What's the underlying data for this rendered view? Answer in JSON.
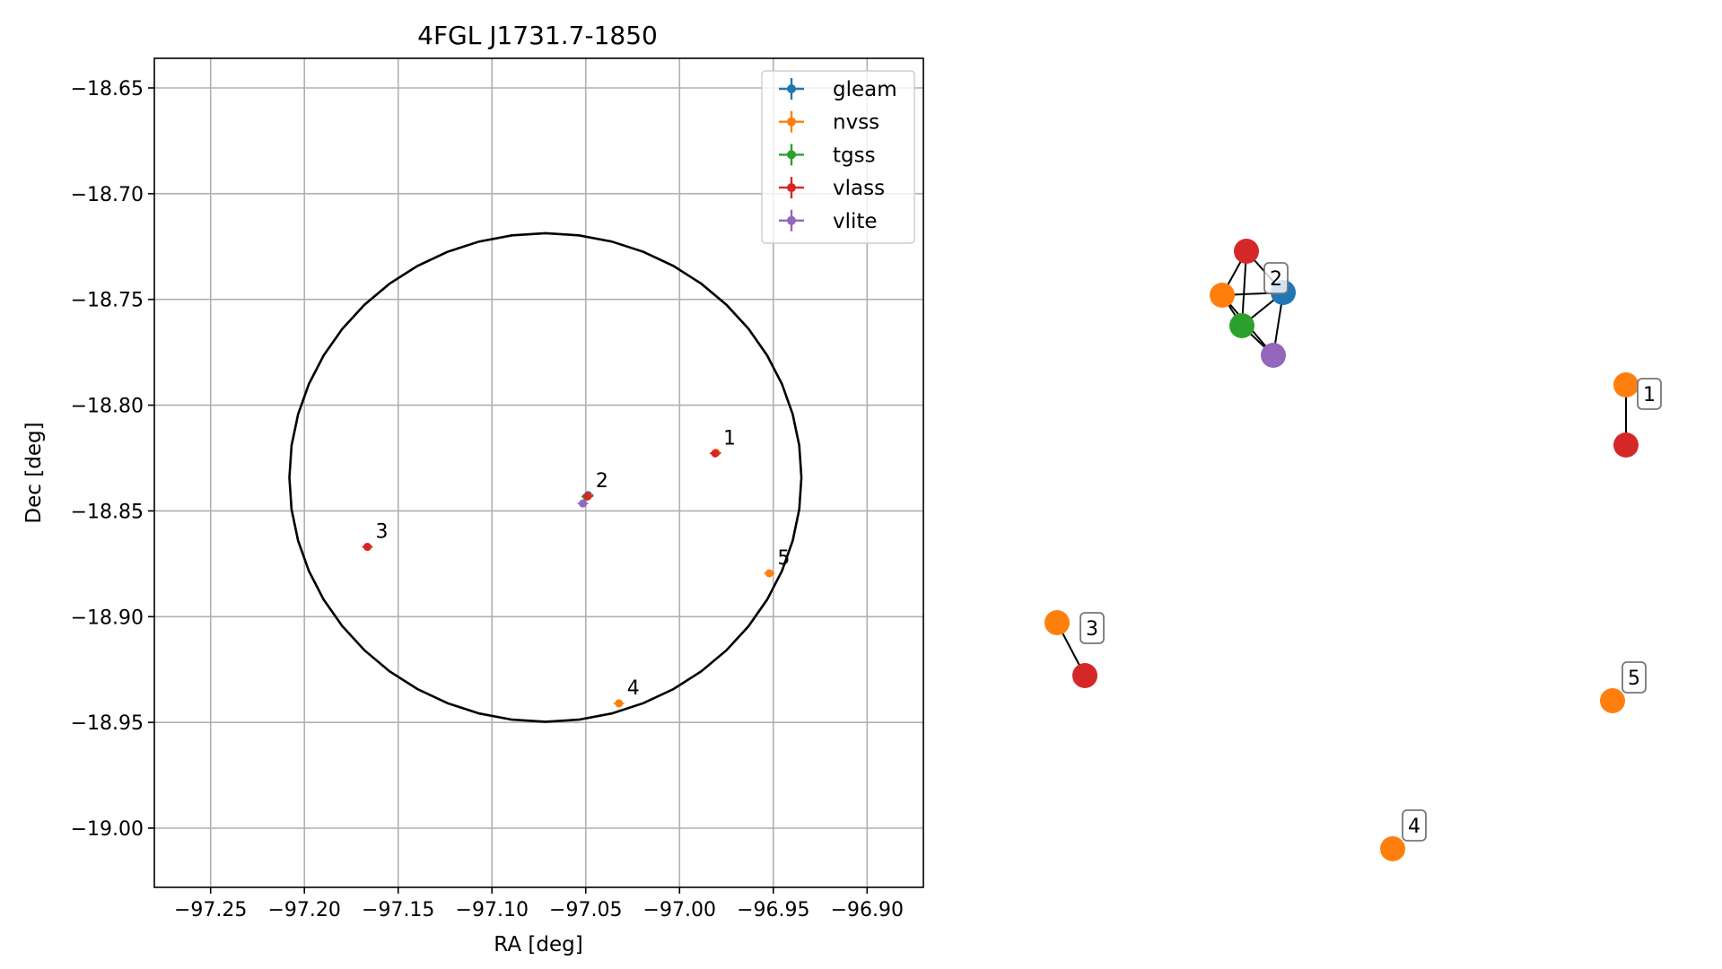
{
  "chart_data": [
    {
      "type": "scatter",
      "title": "4FGL J1731.7-1850",
      "xlabel": "RA [deg]",
      "ylabel": "Dec [deg]",
      "xlim": [
        -97.28,
        -96.87
      ],
      "ylim": [
        -19.028,
        -18.636
      ],
      "grid": true,
      "legend_position": "top-right",
      "xticks": [
        -97.25,
        -97.2,
        -97.15,
        -97.1,
        -97.05,
        -97.0,
        -96.95,
        -96.9
      ],
      "xtick_labels": [
        "−97.25",
        "−97.20",
        "−97.15",
        "−97.10",
        "−97.05",
        "−97.00",
        "−96.95",
        "−96.90"
      ],
      "yticks": [
        -18.65,
        -18.7,
        -18.75,
        -18.8,
        -18.85,
        -18.9,
        -18.95,
        -19.0
      ],
      "ytick_labels": [
        "−18.65",
        "−18.70",
        "−18.75",
        "−18.80",
        "−18.85",
        "−18.90",
        "−18.95",
        "−19.00"
      ],
      "ellipse": {
        "center_ra": -97.0715,
        "center_dec": -18.8342,
        "ra_semi_axis": 0.1365,
        "dec_semi_axis": 0.1155
      },
      "series": [
        {
          "name": "gleam",
          "color": "#1f77b4",
          "points": [
            {
              "ra": -97.0487,
              "dec": -18.8425,
              "label": ""
            }
          ]
        },
        {
          "name": "nvss",
          "color": "#ff7f0e",
          "points": [
            {
              "ra": -97.0487,
              "dec": -18.843,
              "label": ""
            },
            {
              "ra": -97.0323,
              "dec": -18.941,
              "label": "4"
            },
            {
              "ra": -96.9521,
              "dec": -18.8795,
              "label": "5"
            },
            {
              "ra": -96.9805,
              "dec": -18.8225,
              "label": ""
            },
            {
              "ra": -97.1664,
              "dec": -18.867,
              "label": ""
            }
          ]
        },
        {
          "name": "tgss",
          "color": "#2ca02c",
          "points": [
            {
              "ra": -97.0495,
              "dec": -18.8433,
              "label": ""
            }
          ]
        },
        {
          "name": "vlass",
          "color": "#d62728",
          "points": [
            {
              "ra": -96.981,
              "dec": -18.8228,
              "label": "1"
            },
            {
              "ra": -97.049,
              "dec": -18.843,
              "label": "2"
            },
            {
              "ra": -97.1664,
              "dec": -18.867,
              "label": "3"
            }
          ]
        },
        {
          "name": "vlite",
          "color": "#9467bd",
          "points": [
            {
              "ra": -97.0515,
              "dec": -18.8465,
              "label": ""
            }
          ]
        }
      ]
    },
    {
      "type": "network",
      "nodes": [
        {
          "id": "g2",
          "survey": "gleam",
          "color": "#1f77b4",
          "label": ""
        },
        {
          "id": "n2",
          "survey": "nvss",
          "color": "#ff7f0e",
          "label": ""
        },
        {
          "id": "t2",
          "survey": "tgss",
          "color": "#2ca02c",
          "label": ""
        },
        {
          "id": "v2",
          "survey": "vlass",
          "color": "#d62728",
          "label": ""
        },
        {
          "id": "l2",
          "survey": "vlite",
          "color": "#9467bd",
          "label": ""
        },
        {
          "id": "n1",
          "survey": "nvss",
          "color": "#ff7f0e",
          "label": ""
        },
        {
          "id": "v1",
          "survey": "vlass",
          "color": "#d62728",
          "label": ""
        },
        {
          "id": "n3",
          "survey": "nvss",
          "color": "#ff7f0e",
          "label": ""
        },
        {
          "id": "v3",
          "survey": "vlass",
          "color": "#d62728",
          "label": ""
        },
        {
          "id": "n5",
          "survey": "nvss",
          "color": "#ff7f0e",
          "label": ""
        },
        {
          "id": "n4",
          "survey": "nvss",
          "color": "#ff7f0e",
          "label": ""
        }
      ],
      "edges": [
        [
          "v2",
          "n2"
        ],
        [
          "v2",
          "g2"
        ],
        [
          "v2",
          "t2"
        ],
        [
          "n2",
          "g2"
        ],
        [
          "n2",
          "t2"
        ],
        [
          "t2",
          "g2"
        ],
        [
          "t2",
          "l2"
        ],
        [
          "g2",
          "l2"
        ],
        [
          "n2",
          "l2"
        ],
        [
          "n1",
          "v1"
        ],
        [
          "n3",
          "v3"
        ]
      ],
      "group_labels": [
        {
          "text": "1",
          "node": "n1"
        },
        {
          "text": "2",
          "node": "g2"
        },
        {
          "text": "3",
          "node": "n3"
        },
        {
          "text": "4",
          "node": "n4"
        },
        {
          "text": "5",
          "node": "n5"
        }
      ]
    }
  ]
}
